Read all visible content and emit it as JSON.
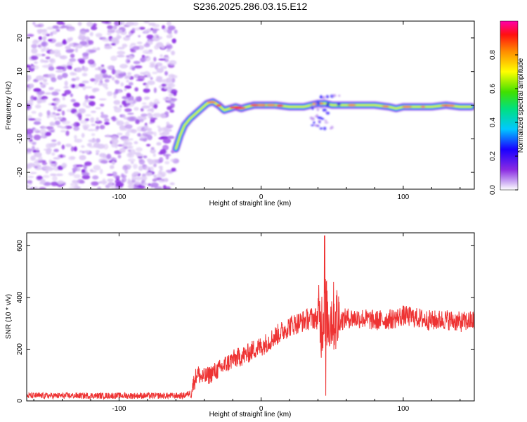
{
  "figure": {
    "title": "S236.2025.286.03.15.E12"
  },
  "chart_data": [
    {
      "type": "heatmap",
      "title": "",
      "xlabel": "Height of straight line (km)",
      "ylabel": "Frequency (Hz)",
      "xlim": [
        -165,
        150
      ],
      "ylim": [
        -25,
        25
      ],
      "x_ticks": [
        -100,
        0,
        100
      ],
      "y_ticks": [
        -20,
        -10,
        0,
        10,
        20
      ],
      "grid": false,
      "left_noise_region": {
        "x_range": [
          -165,
          -60
        ],
        "description_colors": [
          "#8a2be2",
          "#dcc8f5"
        ]
      },
      "ridge": {
        "x": [
          -60,
          -57,
          -54,
          -50,
          -46,
          -42,
          -38,
          -34,
          -30,
          -26,
          -22,
          -18,
          -14,
          -10,
          -5,
          0,
          10,
          20,
          30,
          40,
          45,
          50,
          60,
          70,
          80,
          90,
          95,
          100,
          110,
          120,
          130,
          140,
          148
        ],
        "frequency": [
          -13,
          -9,
          -6,
          -4,
          -2.5,
          -1,
          0.5,
          1,
          0,
          -1.5,
          -1,
          -0.5,
          -1,
          -0.5,
          0,
          0,
          0,
          -0.5,
          -0.5,
          0.5,
          0.5,
          0,
          0,
          0,
          0,
          -0.5,
          -1,
          -0.5,
          -0.5,
          -0.5,
          0,
          -0.5,
          -0.5
        ]
      },
      "colorbar": {
        "label": "Normalized spectral amplitude",
        "range": [
          0.0,
          1.0
        ],
        "ticks": [
          "0.0",
          "0.2",
          "0.4",
          "0.6",
          "0.8"
        ],
        "tick_values": [
          0.0,
          0.2,
          0.4,
          0.6,
          0.8
        ],
        "colors": [
          "#ffffff",
          "#8a2be2",
          "#0000ff",
          "#00e5ff",
          "#00e000",
          "#ffff00",
          "#ff8c00",
          "#ff0000",
          "#ff00aa"
        ]
      }
    },
    {
      "type": "line",
      "title": "",
      "xlabel": "Height of straight line (km)",
      "ylabel": "SNR (10 * v/v)",
      "xlim": [
        -165,
        150
      ],
      "ylim": [
        0,
        650
      ],
      "x_ticks": [
        -100,
        0,
        100
      ],
      "y_ticks": [
        0,
        200,
        400,
        600
      ],
      "grid": false,
      "series_color": "#ee3333",
      "series": [
        {
          "x": [
            -165,
            -150,
            -130,
            -110,
            -90,
            -70,
            -55,
            -50,
            -48,
            -45,
            -42,
            -38,
            -34,
            -30,
            -25,
            -20,
            -15,
            -10,
            -5,
            0,
            5,
            10,
            15,
            20,
            25,
            30,
            35,
            40,
            42,
            44,
            45,
            46,
            48,
            50,
            55,
            60,
            70,
            80,
            90,
            95,
            100,
            110,
            120,
            130,
            140,
            150
          ],
          "values": [
            20,
            20,
            20,
            20,
            20,
            20,
            20,
            30,
            60,
            110,
            90,
            95,
            110,
            120,
            140,
            160,
            170,
            180,
            200,
            210,
            230,
            250,
            270,
            290,
            300,
            310,
            320,
            320,
            290,
            340,
            360,
            330,
            310,
            330,
            310,
            320,
            320,
            310,
            315,
            320,
            330,
            320,
            310,
            315,
            305,
            310
          ]
        }
      ]
    }
  ]
}
